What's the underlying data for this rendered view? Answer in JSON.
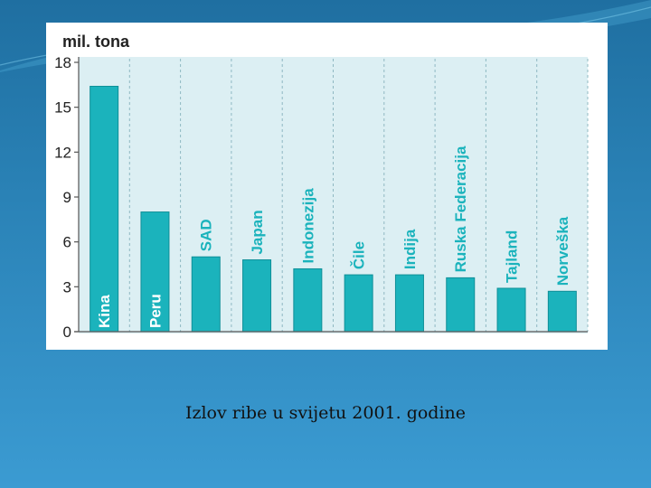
{
  "caption": "Izlov ribe u svijetu 2001. godine",
  "chart_data": {
    "type": "bar",
    "unit_label": "mil. tona",
    "categories": [
      "Kina",
      "Peru",
      "SAD",
      "Japan",
      "Indonezija",
      "Čile",
      "Indija",
      "Ruska Federacija",
      "Tajland",
      "Norveška"
    ],
    "values": [
      16.4,
      8.0,
      5.0,
      4.8,
      4.2,
      3.8,
      3.8,
      3.6,
      2.9,
      2.7
    ],
    "yticks": [
      0,
      3,
      6,
      9,
      12,
      15,
      18
    ],
    "ylim": [
      0,
      18
    ],
    "grid": "vertical dashed",
    "colors": {
      "bar": "#1bb3bc",
      "bar_edge": "#0f8f98",
      "plot_bg": "#dceff3",
      "grid": "#8fb8c2",
      "axis": "#555555",
      "label": "#ffffff"
    }
  }
}
